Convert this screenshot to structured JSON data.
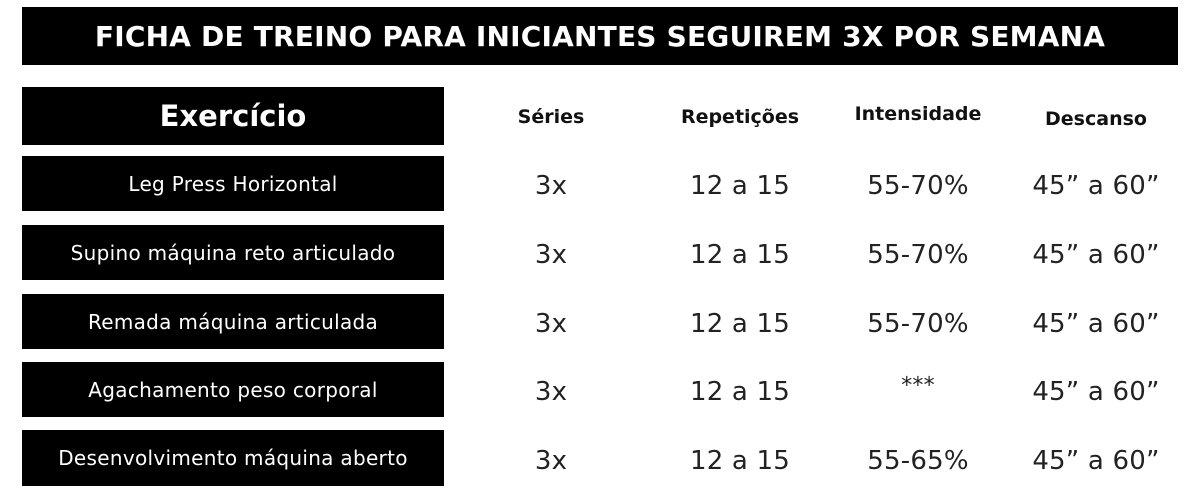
{
  "title": "FICHA DE TREINO PARA INICIANTES SEGUIREM 3X POR SEMANA",
  "headers": {
    "exercicio": "Exercício",
    "series": "Séries",
    "repeticoes": "Repetições",
    "intensidade": "Intensidade",
    "descanso": "Descanso"
  },
  "rows": [
    {
      "exercicio": "Leg Press Horizontal",
      "series": "3x",
      "repeticoes": "12 a 15",
      "intensidade": "55-70%",
      "descanso": "45” a 60”"
    },
    {
      "exercicio": "Supino máquina reto articulado",
      "series": "3x",
      "repeticoes": "12 a 15",
      "intensidade": "55-70%",
      "descanso": "45” a 60”"
    },
    {
      "exercicio": "Remada máquina articulada",
      "series": "3x",
      "repeticoes": "12 a 15",
      "intensidade": "55-70%",
      "descanso": "45” a 60”"
    },
    {
      "exercicio": "Agachamento peso corporal",
      "series": "3x",
      "repeticoes": "12 a 15",
      "intensidade": "***",
      "descanso": "45” a 60”"
    },
    {
      "exercicio": "Desenvolvimento máquina aberto",
      "series": "3x",
      "repeticoes": "12 a 15",
      "intensidade": "55-65%",
      "descanso": "45” a 60”"
    }
  ]
}
